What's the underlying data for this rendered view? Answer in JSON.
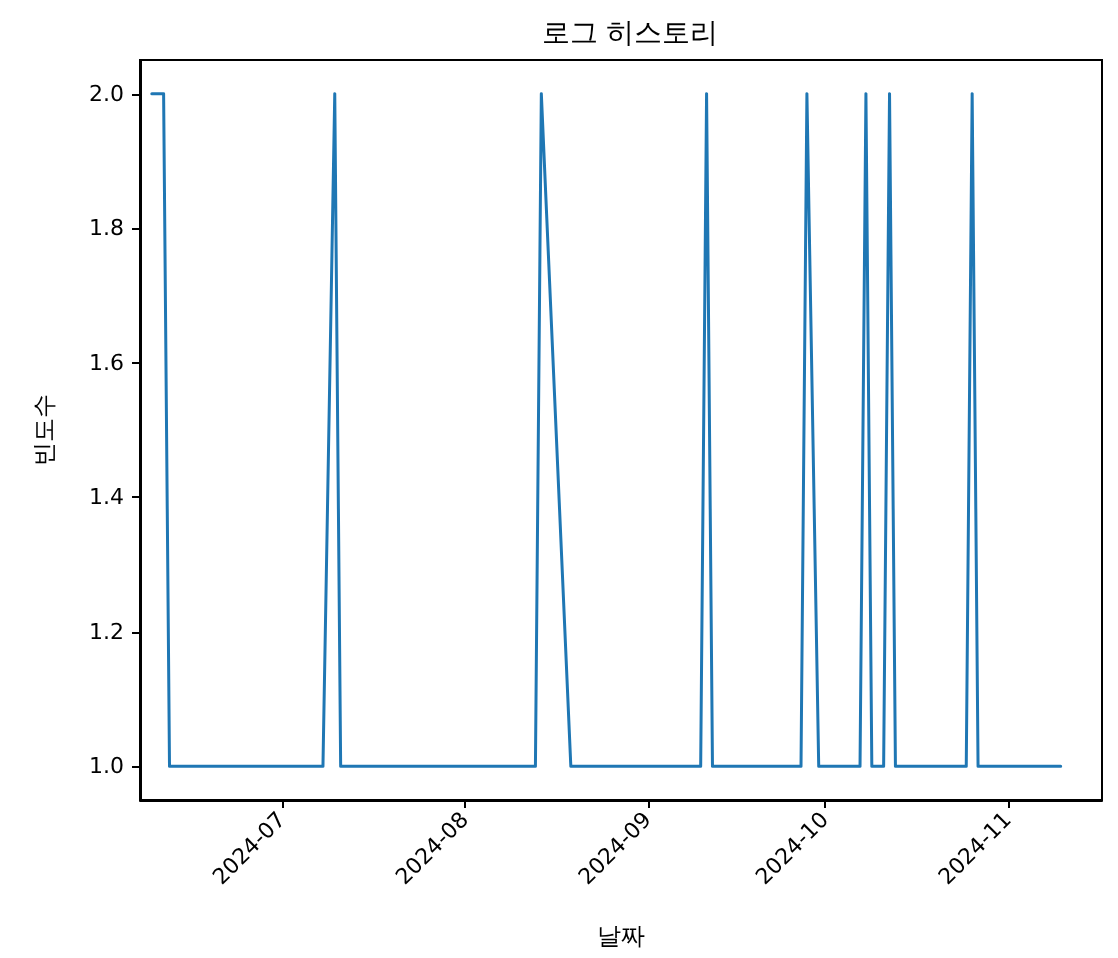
{
  "chart_data": {
    "type": "line",
    "title": "로그 히스토리",
    "xlabel": "날짜",
    "ylabel": "빈도수",
    "x": [
      "2024-06-09",
      "2024-06-11",
      "2024-06-12",
      "2024-07-08",
      "2024-07-10",
      "2024-07-11",
      "2024-08-13",
      "2024-08-14",
      "2024-08-19",
      "2024-09-10",
      "2024-09-11",
      "2024-09-12",
      "2024-09-27",
      "2024-09-28",
      "2024-09-30",
      "2024-10-07",
      "2024-10-08",
      "2024-10-09",
      "2024-10-11",
      "2024-10-12",
      "2024-10-13",
      "2024-10-25",
      "2024-10-26",
      "2024-10-27",
      "2024-11-10"
    ],
    "series": [
      {
        "color": "#1f77b4",
        "values": [
          2,
          2,
          1,
          1,
          2,
          1,
          1,
          2,
          1,
          1,
          2,
          1,
          1,
          2,
          1,
          1,
          2,
          1,
          1,
          2,
          1,
          1,
          2,
          1,
          1
        ]
      }
    ],
    "xlim": [
      "2024-06-07",
      "2024-11-17"
    ],
    "xticks": [
      {
        "value": "2024-07-01",
        "label": "2024-07"
      },
      {
        "value": "2024-08-01",
        "label": "2024-08"
      },
      {
        "value": "2024-09-01",
        "label": "2024-09"
      },
      {
        "value": "2024-10-01",
        "label": "2024-10"
      },
      {
        "value": "2024-11-01",
        "label": "2024-11"
      }
    ],
    "ylim": [
      0.95,
      2.05
    ],
    "yticks": [
      {
        "value": 1,
        "label": "1.0"
      },
      {
        "value": 1.2,
        "label": "1.2"
      },
      {
        "value": 1.4,
        "label": "1.4"
      },
      {
        "value": 1.6,
        "label": "1.6"
      },
      {
        "value": 1.8,
        "label": "1.8"
      },
      {
        "value": 2,
        "label": "2.0"
      }
    ],
    "grid": false,
    "marker": "none",
    "line_style": "solid"
  }
}
